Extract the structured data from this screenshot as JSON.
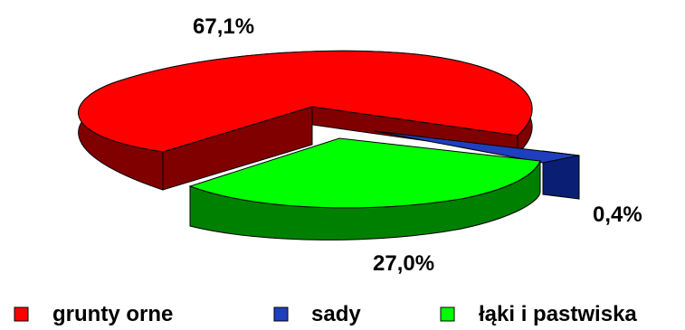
{
  "chart_data": {
    "type": "pie",
    "three_d": true,
    "exploded": true,
    "legend_position": "bottom",
    "slices": [
      {
        "name": "grunty orne",
        "value": 67.1,
        "label": "67,1%",
        "color": "#ff0000",
        "side_color": "#800000"
      },
      {
        "name": "sady",
        "value": 0.4,
        "label": "0,4%",
        "color": "#1f3fbf",
        "side_color": "#0a1f73"
      },
      {
        "name": "łąki i pastwiska",
        "value": 27.0,
        "label": "27,0%",
        "color": "#00ff00",
        "side_color": "#008000"
      }
    ]
  }
}
